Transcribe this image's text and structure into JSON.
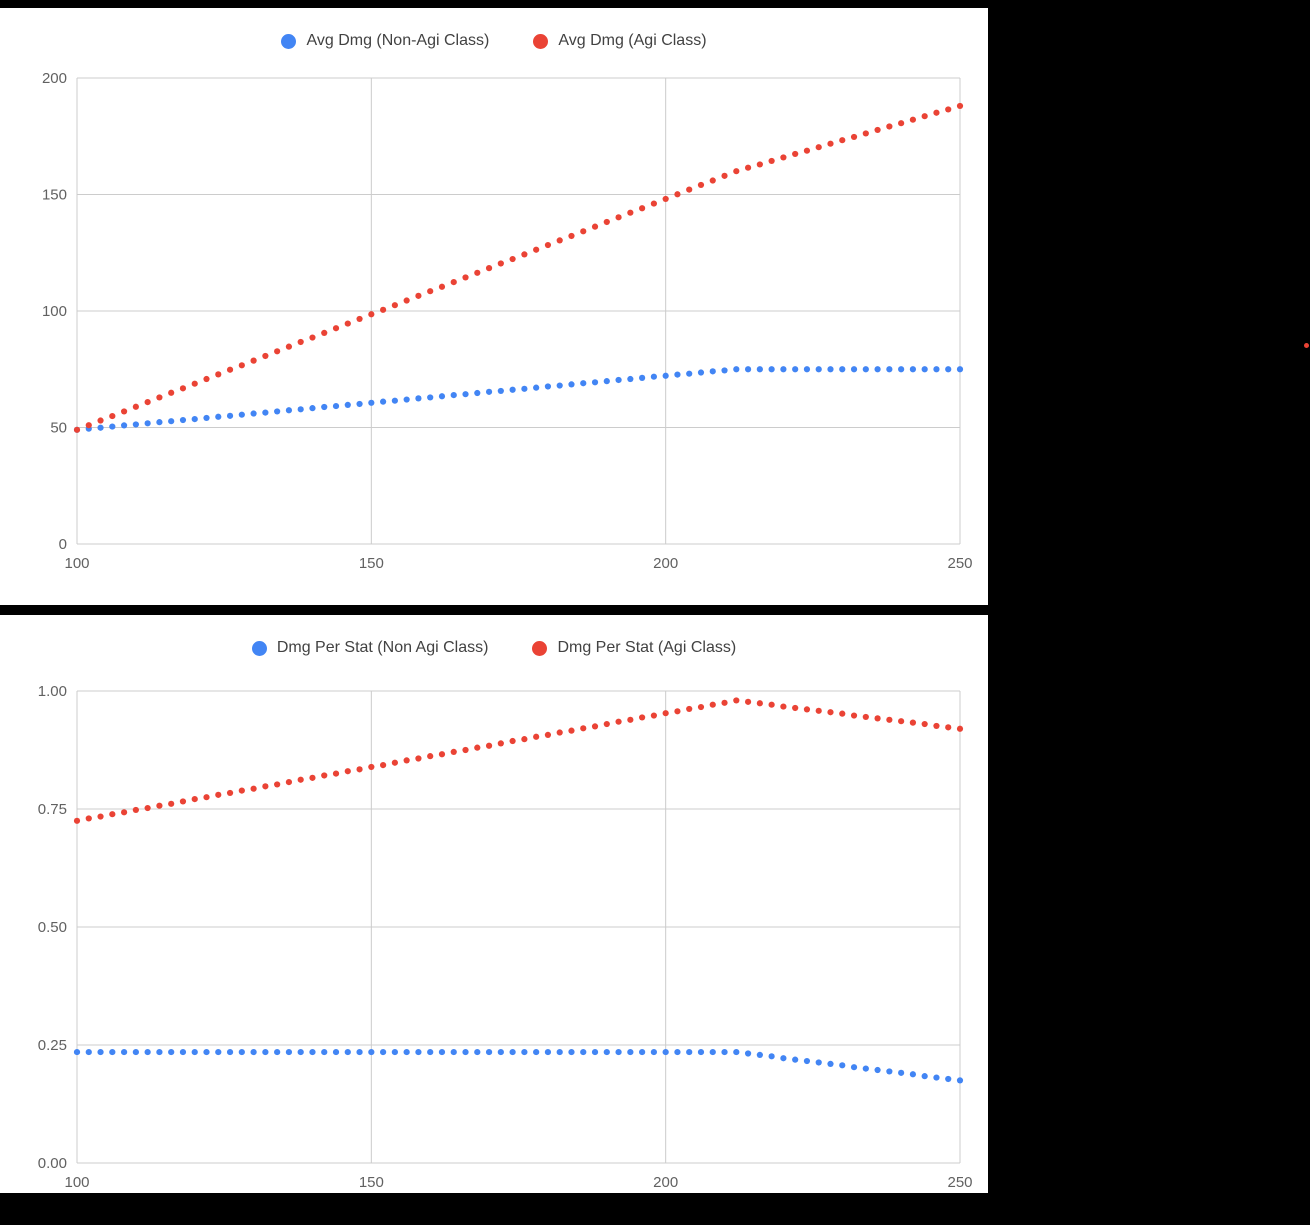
{
  "page": {
    "background": "#000000"
  },
  "stray_dot": {
    "color": "#ea4335"
  },
  "chart_data": [
    {
      "type": "scatter",
      "title": "",
      "xlabel": "",
      "ylabel": "",
      "xlim": [
        100,
        250
      ],
      "ylim": [
        0,
        200
      ],
      "x_ticks": [
        100,
        150,
        200,
        250
      ],
      "x_tick_labels": [
        "100",
        "150",
        "200",
        "250"
      ],
      "y_ticks": [
        0,
        50,
        100,
        150,
        200
      ],
      "y_tick_labels": [
        "0",
        "50",
        "100",
        "150",
        "200"
      ],
      "grid": true,
      "legend_position": "top",
      "x": [
        100,
        102,
        104,
        106,
        108,
        110,
        112,
        114,
        116,
        118,
        120,
        122,
        124,
        126,
        128,
        130,
        132,
        134,
        136,
        138,
        140,
        142,
        144,
        146,
        148,
        150,
        152,
        154,
        156,
        158,
        160,
        162,
        164,
        166,
        168,
        170,
        172,
        174,
        176,
        178,
        180,
        182,
        184,
        186,
        188,
        190,
        192,
        194,
        196,
        198,
        200,
        202,
        204,
        206,
        208,
        210,
        212,
        214,
        216,
        218,
        220,
        222,
        224,
        226,
        228,
        230,
        232,
        234,
        236,
        238,
        240,
        242,
        244,
        246,
        248,
        250
      ],
      "series": [
        {
          "name": "Avg Dmg (Non-Agi Class)",
          "color": "#4285f4",
          "values": [
            49,
            49.5,
            49.9,
            50.4,
            50.9,
            51.3,
            51.8,
            52.3,
            52.7,
            53.2,
            53.6,
            54.1,
            54.6,
            55,
            55.5,
            56,
            56.4,
            56.9,
            57.4,
            57.8,
            58.3,
            58.8,
            59.2,
            59.7,
            60.1,
            60.6,
            61.1,
            61.5,
            62,
            62.5,
            62.9,
            63.4,
            63.9,
            64.3,
            64.8,
            65.3,
            65.7,
            66.2,
            66.6,
            67.1,
            67.6,
            68,
            68.5,
            69,
            69.4,
            69.9,
            70.4,
            70.8,
            71.3,
            71.8,
            72.2,
            72.7,
            73.1,
            73.6,
            74.1,
            74.5,
            75,
            75,
            75,
            75,
            75,
            75,
            75,
            75,
            75,
            75,
            75,
            75,
            75,
            75,
            75,
            75,
            75,
            75,
            75,
            75
          ]
        },
        {
          "name": "Avg Dmg (Agi Class)",
          "color": "#ea4335",
          "values": [
            49,
            51,
            53,
            54.9,
            56.9,
            58.9,
            60.9,
            62.9,
            64.9,
            66.8,
            68.8,
            70.8,
            72.8,
            74.8,
            76.7,
            78.7,
            80.7,
            82.7,
            84.7,
            86.7,
            88.6,
            90.6,
            92.6,
            94.6,
            96.6,
            98.6,
            100.5,
            102.5,
            104.5,
            106.5,
            108.5,
            110.4,
            112.4,
            114.4,
            116.4,
            118.4,
            120.4,
            122.3,
            124.3,
            126.3,
            128.3,
            130.3,
            132.2,
            134.2,
            136.2,
            138.2,
            140.2,
            142.2,
            144.1,
            146.1,
            148.1,
            150.1,
            152.1,
            154.1,
            156,
            158,
            160,
            161.5,
            162.9,
            164.4,
            165.9,
            167.4,
            168.8,
            170.3,
            171.8,
            173.3,
            174.7,
            176.2,
            177.7,
            179.2,
            180.6,
            182.1,
            183.6,
            185.1,
            186.5,
            188
          ]
        }
      ]
    },
    {
      "type": "scatter",
      "title": "",
      "xlabel": "",
      "ylabel": "",
      "xlim": [
        100,
        250
      ],
      "ylim": [
        0,
        1
      ],
      "x_ticks": [
        100,
        150,
        200,
        250
      ],
      "x_tick_labels": [
        "100",
        "150",
        "200",
        "250"
      ],
      "y_ticks": [
        0,
        0.25,
        0.5,
        0.75,
        1
      ],
      "y_tick_labels": [
        "0.00",
        "0.25",
        "0.50",
        "0.75",
        "1.00"
      ],
      "grid": true,
      "legend_position": "top",
      "x": [
        100,
        102,
        104,
        106,
        108,
        110,
        112,
        114,
        116,
        118,
        120,
        122,
        124,
        126,
        128,
        130,
        132,
        134,
        136,
        138,
        140,
        142,
        144,
        146,
        148,
        150,
        152,
        154,
        156,
        158,
        160,
        162,
        164,
        166,
        168,
        170,
        172,
        174,
        176,
        178,
        180,
        182,
        184,
        186,
        188,
        190,
        192,
        194,
        196,
        198,
        200,
        202,
        204,
        206,
        208,
        210,
        212,
        214,
        216,
        218,
        220,
        222,
        224,
        226,
        228,
        230,
        232,
        234,
        236,
        238,
        240,
        242,
        244,
        246,
        248,
        250
      ],
      "series": [
        {
          "name": "Dmg Per Stat (Non Agi Class)",
          "color": "#4285f4",
          "values": [
            0.235,
            0.235,
            0.235,
            0.235,
            0.235,
            0.235,
            0.235,
            0.235,
            0.235,
            0.235,
            0.235,
            0.235,
            0.235,
            0.235,
            0.235,
            0.235,
            0.235,
            0.235,
            0.235,
            0.235,
            0.235,
            0.235,
            0.235,
            0.235,
            0.235,
            0.235,
            0.235,
            0.235,
            0.235,
            0.235,
            0.235,
            0.235,
            0.235,
            0.235,
            0.235,
            0.235,
            0.235,
            0.235,
            0.235,
            0.235,
            0.235,
            0.235,
            0.235,
            0.235,
            0.235,
            0.235,
            0.235,
            0.235,
            0.235,
            0.235,
            0.235,
            0.235,
            0.235,
            0.235,
            0.235,
            0.235,
            0.235,
            0.232,
            0.229,
            0.226,
            0.222,
            0.219,
            0.216,
            0.213,
            0.21,
            0.207,
            0.203,
            0.2,
            0.197,
            0.194,
            0.191,
            0.188,
            0.184,
            0.181,
            0.178,
            0.175
          ]
        },
        {
          "name": "Dmg Per Stat (Agi Class)",
          "color": "#ea4335",
          "values": [
            0.725,
            0.73,
            0.734,
            0.739,
            0.743,
            0.748,
            0.752,
            0.757,
            0.761,
            0.766,
            0.771,
            0.775,
            0.78,
            0.784,
            0.789,
            0.793,
            0.798,
            0.802,
            0.807,
            0.812,
            0.816,
            0.821,
            0.825,
            0.83,
            0.834,
            0.839,
            0.843,
            0.848,
            0.853,
            0.857,
            0.862,
            0.866,
            0.871,
            0.875,
            0.88,
            0.884,
            0.889,
            0.894,
            0.898,
            0.903,
            0.907,
            0.912,
            0.916,
            0.921,
            0.925,
            0.93,
            0.935,
            0.939,
            0.944,
            0.948,
            0.953,
            0.957,
            0.962,
            0.966,
            0.971,
            0.975,
            0.98,
            0.977,
            0.974,
            0.971,
            0.967,
            0.964,
            0.961,
            0.958,
            0.955,
            0.952,
            0.948,
            0.945,
            0.942,
            0.939,
            0.936,
            0.933,
            0.93,
            0.926,
            0.923,
            0.92
          ]
        }
      ]
    }
  ]
}
